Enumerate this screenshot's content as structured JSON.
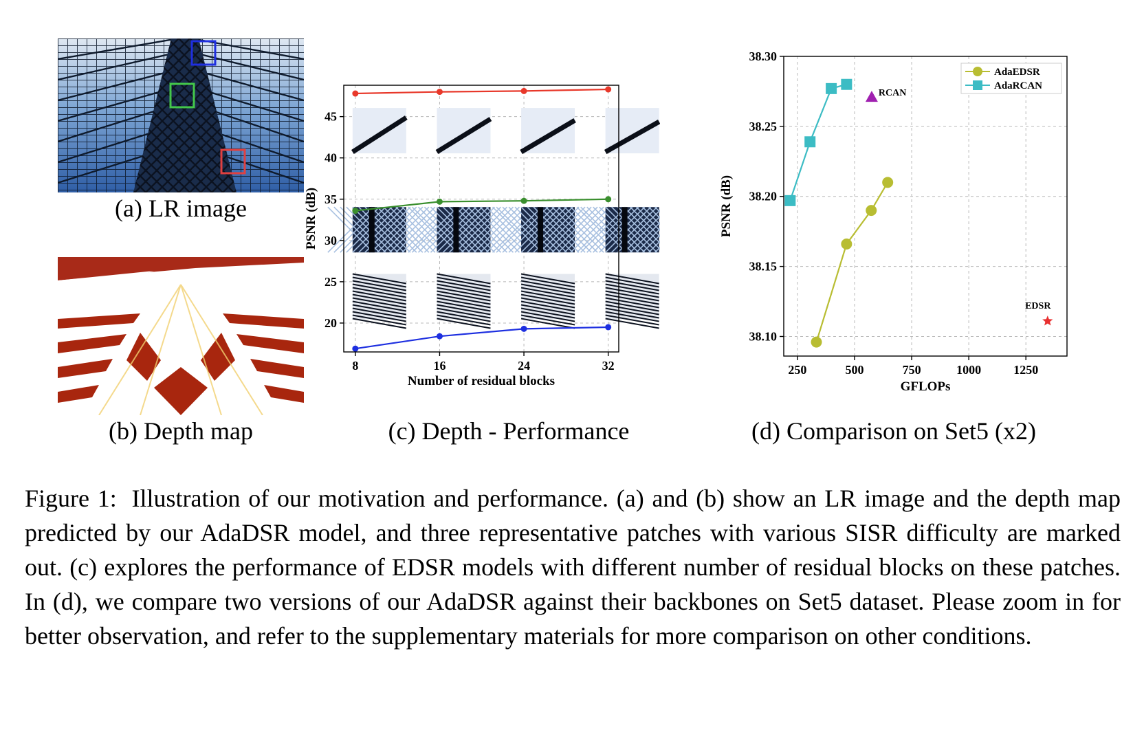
{
  "panels": {
    "a": {
      "label": "(a) LR image"
    },
    "b": {
      "label": "(b) Depth map"
    },
    "c": {
      "label": "(c) Depth - Performance"
    },
    "d": {
      "label": "(d) Comparison on Set5 (x2)"
    }
  },
  "caption": {
    "label": "Figure 1:",
    "text": "Illustration of our motivation and performance. (a) and (b) show an LR image and the depth map predicted by our AdaDSR model, and three representative patches with various SISR difficulty are marked out. (c) explores the performance of EDSR models with different number of residual blocks on these patches. In (d), we compare two versions of our AdaDSR against their backbones on Set5 dataset. Please zoom in for better observation, and refer to the supplementary materials for more comparison on other conditions."
  },
  "colors": {
    "red_series": "#e8382a",
    "green_series": "#3a8f2e",
    "blue_series": "#1d2fe0",
    "adaedsr": "#b8bd32",
    "adarcan": "#3cbcc4",
    "rcan": "#a020b0",
    "edsr": "#e83030"
  },
  "chart_data": [
    {
      "type": "line",
      "xlabel": "Number of residual blocks",
      "ylabel": "PSNR (dB)",
      "x": [
        8,
        16,
        24,
        32
      ],
      "xticks": [
        8,
        16,
        24,
        32
      ],
      "yticks": [
        20,
        25,
        30,
        35,
        40,
        45
      ],
      "ylim": [
        16.5,
        48.8
      ],
      "grid": true,
      "series": [
        {
          "color": "red",
          "values": [
            47.8,
            48.0,
            48.1,
            48.3
          ]
        },
        {
          "color": "green",
          "values": [
            33.6,
            34.7,
            34.8,
            35.0
          ]
        },
        {
          "color": "blue",
          "values": [
            16.9,
            18.4,
            19.3,
            19.5
          ]
        }
      ]
    },
    {
      "type": "scatter",
      "xlabel": "GFLOPs",
      "ylabel": "PSNR (dB)",
      "xticks": [
        250,
        500,
        750,
        1000,
        1250
      ],
      "xtick_labels": [
        "250",
        "500",
        "750",
        "1000",
        "1250"
      ],
      "yticks": [
        38.1,
        38.15,
        38.2,
        38.25,
        38.3
      ],
      "ytick_labels": [
        "38.10",
        "38.15",
        "38.20",
        "38.25",
        "38.30"
      ],
      "xlim": [
        190,
        1430
      ],
      "ylim": [
        38.086,
        38.3
      ],
      "grid": true,
      "legend_position": "top-right",
      "series": [
        {
          "name": "AdaEDSR",
          "marker": "circle",
          "x": [
            333,
            465,
            573,
            645
          ],
          "y": [
            38.096,
            38.166,
            38.19,
            38.21
          ]
        },
        {
          "name": "AdaRCAN",
          "marker": "square",
          "x": [
            218,
            305,
            398,
            465
          ],
          "y": [
            38.197,
            38.239,
            38.277,
            38.28
          ]
        }
      ],
      "points": [
        {
          "name": "RCAN",
          "marker": "triangle",
          "x": [
            575
          ],
          "y": [
            38.271
          ]
        },
        {
          "name": "EDSR",
          "marker": "star",
          "x": [
            1345
          ],
          "y": [
            38.111
          ]
        }
      ]
    }
  ]
}
